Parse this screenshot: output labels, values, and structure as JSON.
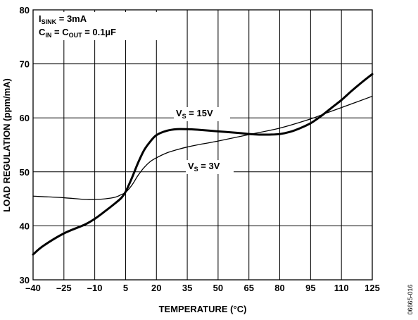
{
  "chart_data": {
    "type": "line",
    "xlabel": "TEMPERATURE (°C)",
    "ylabel": "LOAD REGULATION (ppm/mA)",
    "xlim": [
      -40,
      125
    ],
    "ylim": [
      30,
      80
    ],
    "x_ticks": [
      -40,
      -25,
      -10,
      5,
      20,
      35,
      50,
      65,
      80,
      95,
      110,
      125
    ],
    "x_tick_labels": [
      "–40",
      "–25",
      "–10",
      "5",
      "20",
      "35",
      "50",
      "65",
      "80",
      "95",
      "110",
      "125"
    ],
    "y_ticks": [
      30,
      40,
      50,
      60,
      70,
      80
    ],
    "y_tick_labels": [
      "30",
      "40",
      "50",
      "60",
      "70",
      "80"
    ],
    "grid": true,
    "legend": "none",
    "annotations": {
      "isink": {
        "main": "I",
        "sub": "SINK",
        "rest": " = 3mA"
      },
      "caps": {
        "c1": "C",
        "s1": "IN",
        "mid": " = C",
        "s2": "OUT",
        "rest": " = 0.1µF"
      },
      "vs15": {
        "main": "V",
        "sub": "S",
        "rest": " = 15V"
      },
      "vs3": {
        "main": "V",
        "sub": "S",
        "rest": " = 3V"
      }
    },
    "figure_id": "06665-016",
    "series": [
      {
        "stroke_width": 3,
        "color": "#000000",
        "points": [
          [
            -40,
            34.7
          ],
          [
            -35,
            36.3
          ],
          [
            -25,
            38.6
          ],
          [
            -15,
            40.2
          ],
          [
            -10,
            41.3
          ],
          [
            -5,
            42.7
          ],
          [
            0,
            44.2
          ],
          [
            3,
            45.2
          ],
          [
            5,
            46.3
          ],
          [
            8,
            48.8
          ],
          [
            11,
            51.6
          ],
          [
            14,
            54
          ],
          [
            17,
            55.6
          ],
          [
            20,
            56.8
          ],
          [
            25,
            57.6
          ],
          [
            30,
            57.9
          ],
          [
            35,
            57.9
          ],
          [
            40,
            57.8
          ],
          [
            50,
            57.5
          ],
          [
            60,
            57.2
          ],
          [
            65,
            57
          ],
          [
            70,
            56.9
          ],
          [
            75,
            56.9
          ],
          [
            80,
            57
          ],
          [
            85,
            57.4
          ],
          [
            90,
            58.1
          ],
          [
            95,
            59
          ],
          [
            100,
            60.3
          ],
          [
            105,
            61.8
          ],
          [
            110,
            63.3
          ],
          [
            115,
            65
          ],
          [
            120,
            66.6
          ],
          [
            125,
            68.1
          ]
        ]
      },
      {
        "stroke_width": 1.3,
        "color": "#000000",
        "points": [
          [
            -40,
            45.5
          ],
          [
            -35,
            45.4
          ],
          [
            -25,
            45.2
          ],
          [
            -15,
            44.9
          ],
          [
            -10,
            44.9
          ],
          [
            -5,
            45
          ],
          [
            0,
            45.3
          ],
          [
            3,
            45.8
          ],
          [
            5,
            46.2
          ],
          [
            8,
            47.5
          ],
          [
            11,
            49.3
          ],
          [
            14,
            50.8
          ],
          [
            17,
            51.9
          ],
          [
            20,
            52.6
          ],
          [
            25,
            53.5
          ],
          [
            30,
            54.1
          ],
          [
            35,
            54.6
          ],
          [
            40,
            55
          ],
          [
            50,
            55.7
          ],
          [
            65,
            56.9
          ],
          [
            80,
            58.1
          ],
          [
            95,
            59.8
          ],
          [
            102,
            60.8
          ],
          [
            110,
            61.9
          ],
          [
            125,
            64
          ]
        ]
      }
    ]
  }
}
